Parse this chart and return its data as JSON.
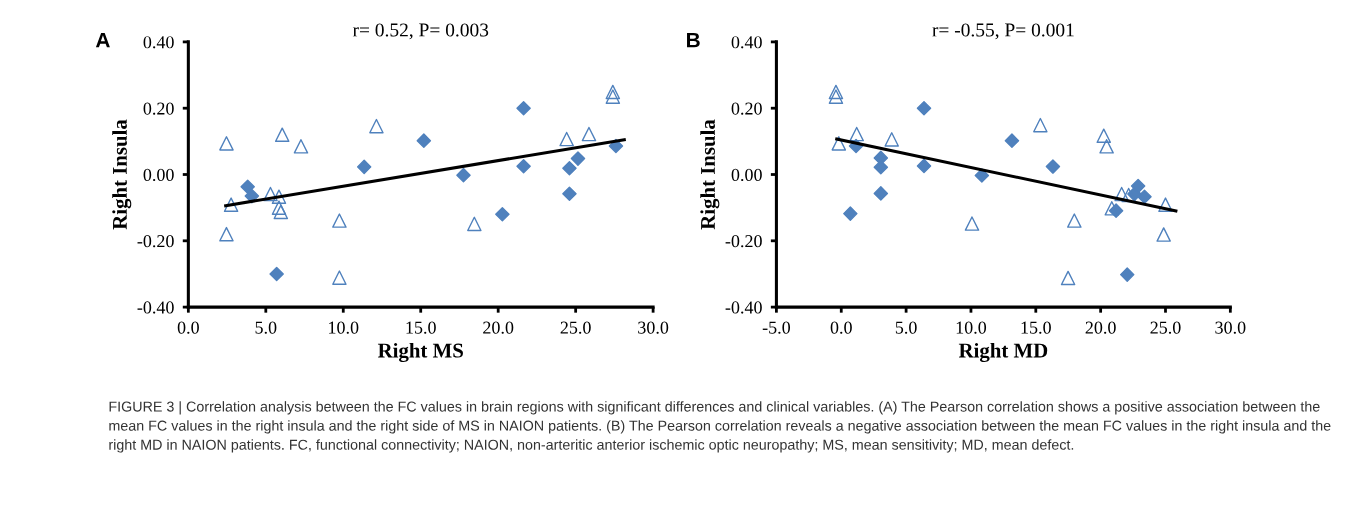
{
  "chart_data": [
    {
      "type": "scatter",
      "title": "r= 0.52, P= 0.003",
      "xlabel": "Right MS",
      "ylabel": "Right Insula",
      "grid": false,
      "legend": false,
      "annotations": [
        "A",
        "FIGURE 3 | Correlation analysis between the FC values in brain regions with significant differences and clinical variables. (A) The Pearson correlation shows a positive association between the mean FC values in the right insula and the right side of MS in NAION patients. (B) The Pearson correlation reveals a negative association between the mean FC values in the right insula and the right MD in NAION patients. FC, functional connectivity; NAION, non-arteritic anterior ischemic optic neuropathy; MS, mean sensitivity; MD, mean defect."
      ],
      "xlim": [
        0,
        30
      ],
      "ylim": [
        -0.4,
        0.4
      ],
      "xticks": [
        {
          "value": 0,
          "label": "0.0"
        },
        {
          "value": 5,
          "label": "5.0"
        },
        {
          "value": 10,
          "label": "10.0"
        },
        {
          "value": 15,
          "label": "15.0"
        },
        {
          "value": 20,
          "label": "20.0"
        },
        {
          "value": 25,
          "label": "25.0"
        },
        {
          "value": 30,
          "label": "30.0"
        }
      ],
      "yticks": [
        {
          "value": -0.4,
          "label": "-0.40"
        },
        {
          "value": -0.2,
          "label": "-0.20"
        },
        {
          "value": 0,
          "label": "0.00"
        },
        {
          "value": 0.2,
          "label": "0.20"
        },
        {
          "value": 0.4,
          "label": "0.40"
        }
      ],
      "series": [
        {
          "marker": "diamond",
          "color": "#4f81bd",
          "x": [
            3.83,
            4.1,
            5.7,
            11.35,
            15.2,
            17.76,
            20.27,
            21.64,
            21.64,
            24.6,
            24.6,
            25.15,
            27.6
          ],
          "values": [
            -0.037,
            -0.065,
            -0.3,
            0.023,
            0.102,
            -0.002,
            -0.12,
            0.2,
            0.025,
            0.019,
            -0.058,
            0.048,
            0.086
          ]
        },
        {
          "marker": "triangle",
          "color": "#4f81bd",
          "x": [
            2.46,
            2.76,
            2.46,
            5.3,
            5.85,
            5.85,
            5.97,
            6.06,
            7.27,
            9.75,
            9.75,
            12.14,
            18.46,
            24.42,
            25.86,
            27.4,
            27.4
          ],
          "values": [
            0.094,
            -0.091,
            -0.18,
            -0.059,
            -0.067,
            -0.1,
            -0.113,
            0.12,
            0.085,
            -0.139,
            -0.311,
            0.146,
            -0.149,
            0.107,
            0.122,
            0.249,
            0.235
          ]
        },
        {
          "type": "line",
          "marker": "none",
          "color": "#000000",
          "x": [
            2.41,
            28.14
          ],
          "values": [
            -0.094,
            0.105
          ]
        }
      ]
    },
    {
      "type": "scatter",
      "title": "r= -0.55, P= 0.001",
      "xlabel": "Right MD",
      "ylabel": "Right Insula",
      "grid": false,
      "legend": false,
      "annotations": [
        "B"
      ],
      "xlim": [
        -5,
        30
      ],
      "ylim": [
        -0.4,
        0.4
      ],
      "xticks": [
        {
          "value": -5,
          "label": "-5.0"
        },
        {
          "value": 0,
          "label": "0.0"
        },
        {
          "value": 5,
          "label": "5.0"
        },
        {
          "value": 10,
          "label": "10.0"
        },
        {
          "value": 15,
          "label": "15.0"
        },
        {
          "value": 20,
          "label": "20.0"
        },
        {
          "value": 25,
          "label": "25.0"
        },
        {
          "value": 30,
          "label": "30.0"
        }
      ],
      "yticks": [
        {
          "value": -0.4,
          "label": "-0.40"
        },
        {
          "value": -0.2,
          "label": "-0.20"
        },
        {
          "value": 0,
          "label": "0.00"
        },
        {
          "value": 0.2,
          "label": "0.20"
        },
        {
          "value": 0.4,
          "label": "0.40"
        }
      ],
      "series": [
        {
          "marker": "diamond",
          "color": "#4f81bd",
          "x": [
            0.7,
            1.14,
            3.05,
            3.05,
            3.05,
            6.38,
            6.38,
            10.84,
            13.16,
            16.32,
            21.19,
            22.05,
            22.6,
            22.89,
            23.38
          ],
          "values": [
            -0.118,
            0.086,
            0.05,
            0.022,
            -0.057,
            0.2,
            0.026,
            -0.003,
            0.102,
            0.024,
            -0.109,
            -0.302,
            -0.059,
            -0.035,
            -0.067
          ]
        },
        {
          "marker": "triangle",
          "color": "#4f81bd",
          "x": [
            -0.41,
            -0.41,
            -0.19,
            1.19,
            3.89,
            10.08,
            15.35,
            17.49,
            17.97,
            20.24,
            20.46,
            20.86,
            21.62,
            22.16,
            24.86,
            25.0
          ],
          "values": [
            0.249,
            0.235,
            0.094,
            0.122,
            0.106,
            -0.148,
            0.149,
            -0.312,
            -0.139,
            0.117,
            0.085,
            -0.102,
            -0.059,
            -0.062,
            -0.181,
            -0.091
          ]
        },
        {
          "type": "line",
          "marker": "none",
          "color": "#000000",
          "x": [
            -0.35,
            25.8
          ],
          "values": [
            0.107,
            -0.11
          ]
        }
      ]
    }
  ]
}
